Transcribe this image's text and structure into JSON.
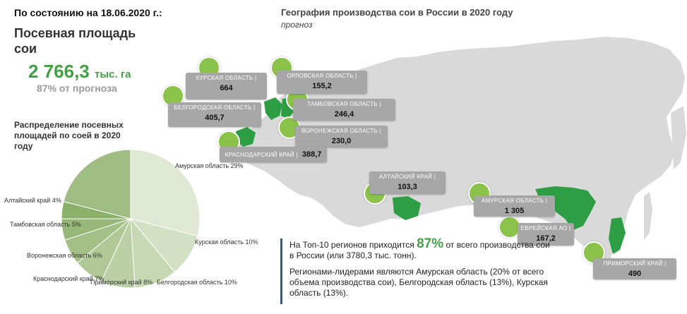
{
  "header": {
    "date": "По состоянию на 18.06.2020 г.:"
  },
  "sown_area": {
    "title": "Посевная площадь сои",
    "value": "2 766,3",
    "unit": "тыс. га",
    "note": "87% от прогноза"
  },
  "pie": {
    "title": "Распределение посевных площадей по соей в 2020 году"
  },
  "chart_data": {
    "type": "pie",
    "categories": [
      "Амурская область",
      "Курская область",
      "Белгородская область",
      "Приморский край",
      "Краснодарский край",
      "Воронежская область",
      "Тамбовская область",
      "Алтайский край",
      ""
    ],
    "values": [
      29,
      10,
      10,
      8,
      7,
      6,
      5,
      4,
      21
    ],
    "labels": [
      "Амурская область 29%",
      "Курская область 10%",
      "Белгородская область 10%",
      "Приморский край 8%",
      "Краснодарский край 7%",
      "Воронежская область 6%",
      "Тамбовская область 5%",
      "Алтайский край 4%"
    ],
    "colors": [
      "#dfe8d2",
      "#d3e0c3",
      "#c7d8b4",
      "#bbd0a5",
      "#afc896",
      "#a3c087",
      "#97b878",
      "#8bb069",
      "#9fbd83"
    ]
  },
  "map": {
    "title": "География производства сои в России в 2020 году",
    "subtitle": "прогноз",
    "map_color": "#d9d9d9",
    "highlight_color": "#2e9e45",
    "regions": [
      {
        "name": "КУРСКАЯ ОБЛАСТЬ |",
        "value": "664"
      },
      {
        "name": "ОРЛОВСКАЯ ОБЛАСТЬ |",
        "value": "155,2"
      },
      {
        "name": "БЕЛГОРОДСКАЯ ОБЛАСТЬ |",
        "value": "405,7"
      },
      {
        "name": "ТАМБОВСКАЯ ОБЛАСТЬ |",
        "value": "246,4"
      },
      {
        "name": "ВОРОНЕЖСКАЯ ОБЛАСТЬ |",
        "value": "230,0"
      },
      {
        "name": "КРАСНОДАРСКИЙ КРАЙ |",
        "value": "388,7"
      },
      {
        "name": "АЛТАЙСКИЙ КРАЙ |",
        "value": "103,3"
      },
      {
        "name": "АМУРСКАЯ ОБЛАСТЬ |",
        "value": "1 305"
      },
      {
        "name": "ЕВРЕЙСКАЯ АО |",
        "value": "167,2"
      },
      {
        "name": "ПРИМОРСКИЙ КРАЙ |",
        "value": "490"
      }
    ]
  },
  "info": {
    "p1_before": "На Топ-10 регионов приходится",
    "p1_big": "87%",
    "p1_after": "от всего производства сои в России  (или 3780,3 тыс. тонн).",
    "p2": "Регионами-лидерами являются Амурская область (20% от всего объема производства сои),  Белгородская область (13%), Курская область (13%)."
  }
}
